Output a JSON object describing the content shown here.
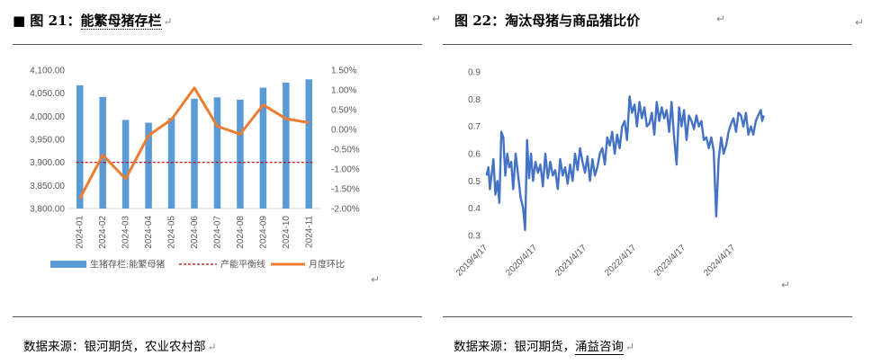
{
  "left": {
    "bullet": "■",
    "title_prefix": "图 21：",
    "title_name": "能繁母猪存栏",
    "source_label": "数据来源：",
    "source_text": "银河期货，农业农村部",
    "chart_data": {
      "type": "bar+line",
      "categories": [
        "2024-01",
        "2024-02",
        "2024-03",
        "2024-04",
        "2024-05",
        "2024-06",
        "2024-07",
        "2024-08",
        "2024-09",
        "2024-10",
        "2024-11"
      ],
      "y_left_ticks": [
        "4,100.00",
        "4,050.00",
        "4,000.00",
        "3,950.00",
        "3,900.00",
        "3,850.00",
        "3,800.00"
      ],
      "y_left_range": [
        3800,
        4100
      ],
      "y_right_ticks": [
        "1.50%",
        "1.00%",
        "0.50%",
        "0.00%",
        "-0.50%",
        "-1.00%",
        "-1.50%",
        "-2.00%"
      ],
      "y_right_range": [
        -2.0,
        1.5
      ],
      "series": [
        {
          "name": "生猪存栏:能繁母猪",
          "kind": "bar",
          "axis": "left",
          "color": "#5b9bd5",
          "values": [
            4067,
            4042,
            3992,
            3986,
            3996,
            4038,
            4041,
            4036,
            4062,
            4073,
            4080
          ]
        },
        {
          "name": "产能平衡线",
          "kind": "dashed-line",
          "axis": "left",
          "color": "#c00000",
          "values": [
            3900,
            3900,
            3900,
            3900,
            3900,
            3900,
            3900,
            3900,
            3900,
            3900,
            3900
          ]
        },
        {
          "name": "月度环比",
          "kind": "line",
          "axis": "right",
          "color": "#ed7d31",
          "values": [
            -1.75,
            -0.65,
            -1.25,
            -0.15,
            0.25,
            1.05,
            0.08,
            -0.12,
            0.62,
            0.27,
            0.17
          ]
        }
      ],
      "legend": "bottom"
    }
  },
  "right": {
    "title_prefix": "图 22：",
    "title_name": "淘汰母猪与商品猪比价",
    "source_label": "数据来源：",
    "source_plain": "银河期货，",
    "source_underlined": "涌益咨询",
    "chart_data": {
      "type": "line",
      "y_ticks": [
        "0.9",
        "0.8",
        "0.7",
        "0.6",
        "0.5",
        "0.4",
        "0.3"
      ],
      "y_range": [
        0.3,
        0.9
      ],
      "x_ticks": [
        "2019/4/17",
        "2020/4/17",
        "2021/4/17",
        "2022/4/17",
        "2023/4/17",
        "2024/4/17"
      ],
      "x_range": [
        2019.25,
        2024.92
      ],
      "color": "#4472c4",
      "series": [
        {
          "x": [
            2019.26,
            2019.3,
            2019.33,
            2019.37,
            2019.4,
            2019.44,
            2019.48,
            2019.52,
            2019.56,
            2019.6,
            2019.64,
            2019.68,
            2019.72,
            2019.76,
            2019.8,
            2019.85,
            2019.9,
            2019.95,
            2020.0,
            2020.04,
            2020.08,
            2020.12,
            2020.16,
            2020.2,
            2020.25,
            2020.3,
            2020.35,
            2020.4,
            2020.45,
            2020.5,
            2020.55,
            2020.6,
            2020.65,
            2020.7,
            2020.75,
            2020.8,
            2020.85,
            2020.9,
            2020.95,
            2021.0,
            2021.05,
            2021.1,
            2021.15,
            2021.2,
            2021.25,
            2021.3,
            2021.35,
            2021.4,
            2021.45,
            2021.5,
            2021.55,
            2021.6,
            2021.65,
            2021.7,
            2021.75,
            2021.8,
            2021.85,
            2021.9,
            2021.95,
            2022.0,
            2022.05,
            2022.1,
            2022.15,
            2022.2,
            2022.25,
            2022.3,
            2022.35,
            2022.4,
            2022.45,
            2022.5,
            2022.55,
            2022.6,
            2022.65,
            2022.7,
            2022.75,
            2022.8,
            2022.85,
            2022.9,
            2022.95,
            2023.0,
            2023.05,
            2023.1,
            2023.15,
            2023.2,
            2023.25,
            2023.3,
            2023.35,
            2023.4,
            2023.45,
            2023.5,
            2023.55,
            2023.6,
            2023.65,
            2023.7,
            2023.75,
            2023.8,
            2023.85,
            2023.9,
            2023.95,
            2024.0,
            2024.05,
            2024.1,
            2024.15,
            2024.2,
            2024.25,
            2024.3,
            2024.35,
            2024.4,
            2024.45,
            2024.5,
            2024.55,
            2024.6,
            2024.65,
            2024.7,
            2024.75,
            2024.8,
            2024.83,
            2024.86
          ],
          "y": [
            0.52,
            0.55,
            0.47,
            0.53,
            0.58,
            0.45,
            0.5,
            0.42,
            0.68,
            0.66,
            0.52,
            0.6,
            0.55,
            0.57,
            0.47,
            0.6,
            0.52,
            0.44,
            0.4,
            0.32,
            0.65,
            0.51,
            0.6,
            0.5,
            0.57,
            0.53,
            0.56,
            0.48,
            0.6,
            0.51,
            0.57,
            0.52,
            0.54,
            0.47,
            0.58,
            0.52,
            0.55,
            0.49,
            0.56,
            0.5,
            0.6,
            0.54,
            0.62,
            0.57,
            0.53,
            0.59,
            0.5,
            0.58,
            0.52,
            0.55,
            0.6,
            0.62,
            0.56,
            0.66,
            0.63,
            0.68,
            0.6,
            0.67,
            0.62,
            0.7,
            0.72,
            0.65,
            0.81,
            0.75,
            0.78,
            0.7,
            0.79,
            0.73,
            0.77,
            0.7,
            0.71,
            0.75,
            0.67,
            0.79,
            0.72,
            0.77,
            0.73,
            0.76,
            0.68,
            0.79,
            0.66,
            0.56,
            0.77,
            0.7,
            0.76,
            0.65,
            0.74,
            0.72,
            0.69,
            0.74,
            0.7,
            0.72,
            0.65,
            0.66,
            0.62,
            0.66,
            0.61,
            0.37,
            0.58,
            0.66,
            0.6,
            0.63,
            0.68,
            0.71,
            0.73,
            0.68,
            0.75,
            0.74,
            0.7,
            0.75,
            0.67,
            0.7,
            0.67,
            0.72,
            0.74,
            0.76,
            0.72,
            0.74
          ]
        }
      ]
    }
  }
}
